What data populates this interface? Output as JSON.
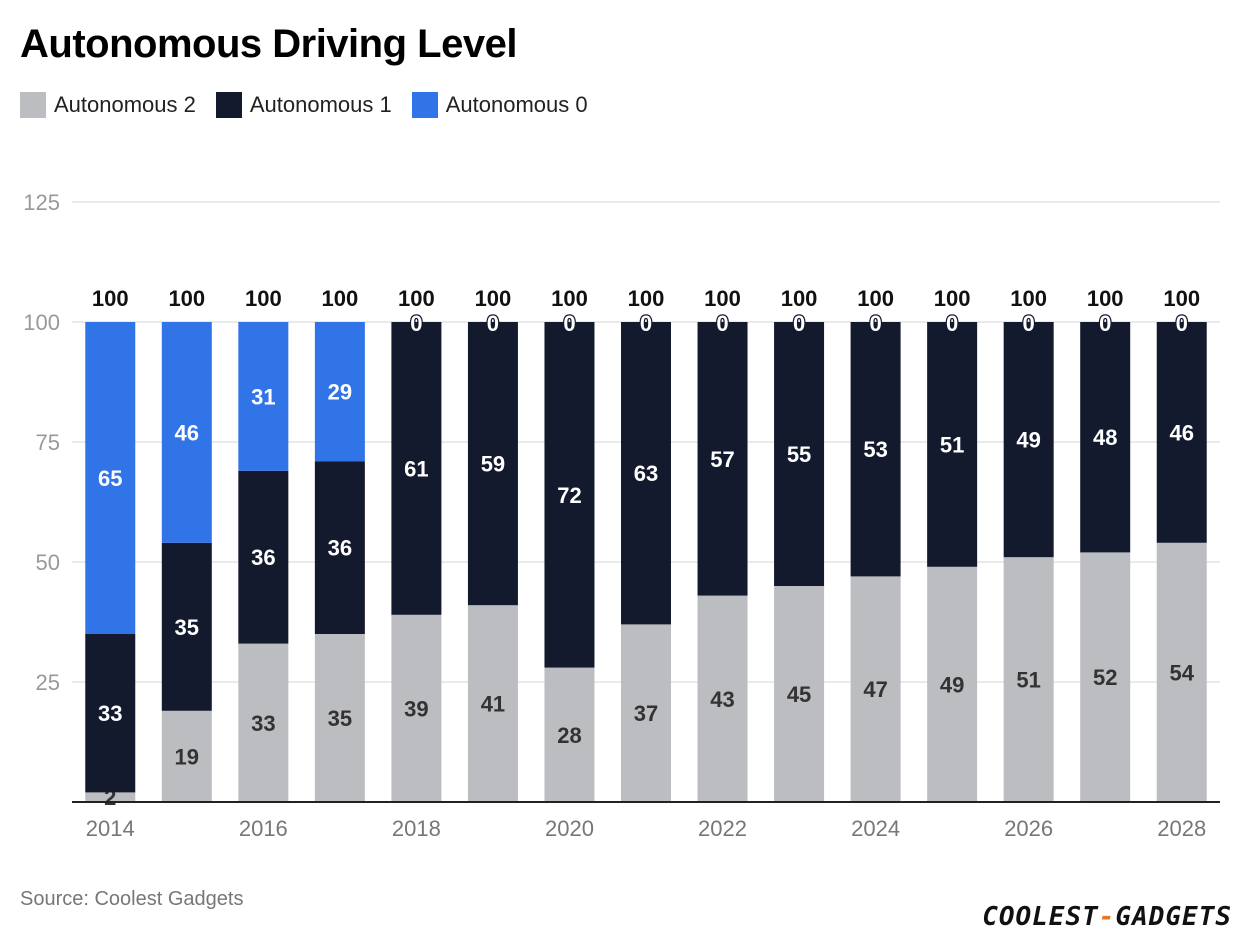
{
  "source": "Source: Coolest Gadgets",
  "logo": {
    "left": "COOLEST",
    "dash": "-",
    "right": "GADGETS"
  },
  "chart_data": {
    "type": "bar",
    "stacked": true,
    "title": "Autonomous Driving Level",
    "xlabel": "",
    "ylabel": "",
    "ylim": [
      0,
      125
    ],
    "yticks": [
      25,
      50,
      75,
      100,
      125
    ],
    "categories": [
      "2014",
      "2015",
      "2016",
      "2017",
      "2018",
      "2019",
      "2020",
      "2021",
      "2022",
      "2023",
      "2024",
      "2025",
      "2026",
      "2027",
      "2028"
    ],
    "x_tick_labels": [
      "2014",
      "",
      "2016",
      "",
      "2018",
      "",
      "2020",
      "",
      "2022",
      "",
      "2024",
      "",
      "2026",
      "",
      "2028"
    ],
    "series": [
      {
        "name": "Autonomous 2",
        "color": "#bcbdc0",
        "label_color": "#333333",
        "values": [
          2,
          19,
          33,
          35,
          39,
          41,
          28,
          37,
          43,
          45,
          47,
          49,
          51,
          52,
          54
        ]
      },
      {
        "name": "Autonomous 1",
        "color": "#141a2e",
        "label_color": "#ffffff",
        "values": [
          33,
          35,
          36,
          36,
          61,
          59,
          72,
          63,
          57,
          55,
          53,
          51,
          49,
          48,
          46
        ]
      },
      {
        "name": "Autonomous 0",
        "color": "#3174e8",
        "label_color": "#ffffff",
        "values": [
          65,
          46,
          31,
          29,
          0,
          0,
          0,
          0,
          0,
          0,
          0,
          0,
          0,
          0,
          0
        ]
      }
    ],
    "totals": [
      100,
      100,
      100,
      100,
      100,
      100,
      100,
      100,
      100,
      100,
      100,
      100,
      100,
      100,
      100
    ],
    "legend_position": "top-left",
    "grid": true
  }
}
